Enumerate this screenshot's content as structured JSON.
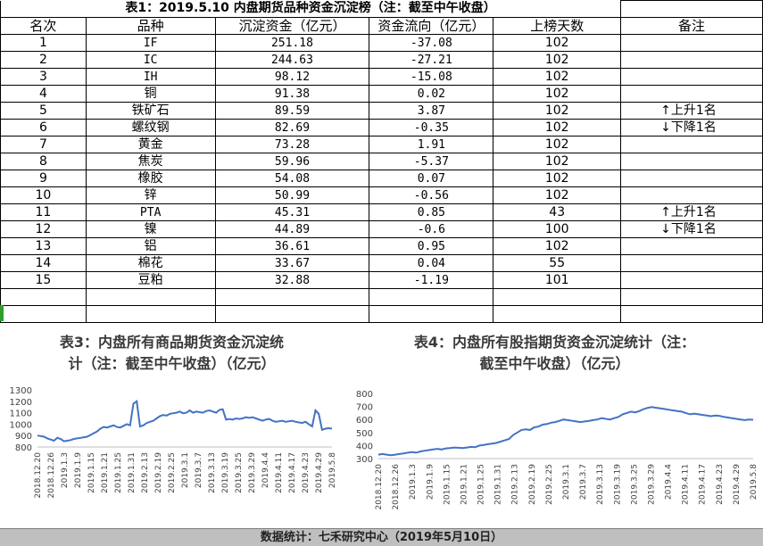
{
  "table": {
    "title": "表1：2019.5.10 内盘期货品种资金沉淀榜（注：截至中午收盘）",
    "headers": [
      "名次",
      "品种",
      "沉淀资金（亿元）",
      "资金流向（亿元）",
      "上榜天数",
      "备注"
    ],
    "rows": [
      [
        "1",
        "IF",
        "251.18",
        "-37.08",
        "102",
        ""
      ],
      [
        "2",
        "IC",
        "244.63",
        "-27.21",
        "102",
        ""
      ],
      [
        "3",
        "IH",
        "98.12",
        "-15.08",
        "102",
        ""
      ],
      [
        "4",
        "铜",
        "91.38",
        "0.02",
        "102",
        ""
      ],
      [
        "5",
        "铁矿石",
        "89.59",
        "3.87",
        "102",
        "上升1名"
      ],
      [
        "6",
        "螺纹钢",
        "82.69",
        "-0.35",
        "102",
        "下降1名"
      ],
      [
        "7",
        "黄金",
        "73.28",
        "1.91",
        "102",
        ""
      ],
      [
        "8",
        "焦炭",
        "59.96",
        "-5.37",
        "102",
        ""
      ],
      [
        "9",
        "橡胶",
        "54.08",
        "0.07",
        "102",
        ""
      ],
      [
        "10",
        "锌",
        "50.99",
        "-0.56",
        "102",
        ""
      ],
      [
        "11",
        "PTA",
        "45.31",
        "0.85",
        "43",
        "上升1名"
      ],
      [
        "12",
        "镍",
        "44.89",
        "-0.6",
        "100",
        "下降1名"
      ],
      [
        "13",
        "铝",
        "36.61",
        "0.95",
        "102",
        ""
      ],
      [
        "14",
        "棉花",
        "33.67",
        "0.04",
        "55",
        ""
      ],
      [
        "15",
        "豆粕",
        "32.88",
        "-1.19",
        "101",
        ""
      ]
    ],
    "arrow_up": "↑",
    "arrow_down": "↓"
  },
  "chart_data": [
    {
      "type": "line",
      "title": "表3：内盘所有商品期货资金沉淀统计（注：截至中午收盘）（亿元）",
      "title_line1": "表3：内盘所有商品期货资金沉淀统",
      "title_line2": "计（注：截至中午收盘）（亿元）",
      "ylim": [
        800,
        1300
      ],
      "yticks": [
        800,
        900,
        1000,
        1100,
        1200,
        1300
      ],
      "xticks": [
        "2018.12.20",
        "2018.12.26",
        "2019.1.3",
        "2019.1.9",
        "2019.1.15",
        "2019.1.21",
        "2019.1.25",
        "2019.1.31",
        "2019.2.13",
        "2019.2.19",
        "2019.2.25",
        "2019.3.1",
        "2019.3.7",
        "2019.3.13",
        "2019.3.19",
        "2019.3.25",
        "2019.3.29",
        "2019.4.4",
        "2019.4.11",
        "2019.4.17",
        "2019.4.23",
        "2019.4.29",
        "2019.5.8"
      ],
      "color": "#4472c4",
      "series": [
        {
          "values": [
            900,
            895,
            890,
            875,
            865,
            855,
            880,
            870,
            850,
            855,
            860,
            870,
            875,
            880,
            885,
            890,
            905,
            920,
            935,
            960,
            975,
            970,
            980,
            990,
            975,
            970,
            985,
            1000,
            990,
            1180,
            1200,
            980,
            990,
            1010,
            1020,
            1030,
            1050,
            1070,
            1080,
            1075,
            1090,
            1095,
            1100,
            1110,
            1095,
            1100,
            1120,
            1100,
            1110,
            1105,
            1100,
            1115,
            1120,
            1110,
            1100,
            1125,
            1130,
            1040,
            1045,
            1040,
            1050,
            1045,
            1050,
            1060,
            1055,
            1060,
            1050,
            1040,
            1030,
            1040,
            1045,
            1030,
            1020,
            1025,
            1030,
            1020,
            1025,
            1030,
            1020,
            1015,
            1010,
            1020,
            1000,
            980,
            1120,
            1090,
            950,
            960,
            965,
            960
          ]
        }
      ]
    },
    {
      "type": "line",
      "title": "表4：内盘所有股指期货资金沉淀统计（注：截至中午收盘）（亿元）",
      "title_line1": "表4：内盘所有股指期货资金沉淀统计（注：",
      "title_line2": "截至中午收盘）（亿元）",
      "ylim": [
        300,
        800
      ],
      "yticks": [
        300,
        400,
        500,
        600,
        700,
        800
      ],
      "xticks": [
        "2018.12.20",
        "2018.12.26",
        "2019.1.3",
        "2019.1.9",
        "2019.1.15",
        "2019.1.21",
        "2019.1.25",
        "2019.1.31",
        "2019.2.13",
        "2019.2.19",
        "2019.2.25",
        "2019.3.1",
        "2019.3.7",
        "2019.3.13",
        "2019.3.19",
        "2019.3.25",
        "2019.3.29",
        "2019.4.4",
        "2019.4.11",
        "2019.4.17",
        "2019.4.23",
        "2019.4.29",
        "2019.5.8"
      ],
      "color": "#4472c4",
      "series": [
        {
          "values": [
            330,
            335,
            330,
            325,
            330,
            335,
            340,
            345,
            350,
            345,
            355,
            360,
            365,
            370,
            375,
            370,
            378,
            380,
            385,
            383,
            380,
            385,
            390,
            388,
            400,
            405,
            410,
            415,
            420,
            430,
            440,
            450,
            480,
            500,
            520,
            525,
            520,
            540,
            545,
            560,
            565,
            575,
            580,
            590,
            600,
            595,
            590,
            585,
            580,
            585,
            590,
            595,
            600,
            610,
            605,
            600,
            610,
            620,
            640,
            650,
            660,
            655,
            665,
            680,
            690,
            695,
            690,
            685,
            680,
            675,
            670,
            665,
            660,
            650,
            640,
            645,
            640,
            635,
            630,
            625,
            630,
            628,
            620,
            615,
            610,
            605,
            600,
            595,
            600,
            598
          ]
        }
      ]
    }
  ],
  "footer": "数据统计：七禾研究中心（2019年5月10日）"
}
